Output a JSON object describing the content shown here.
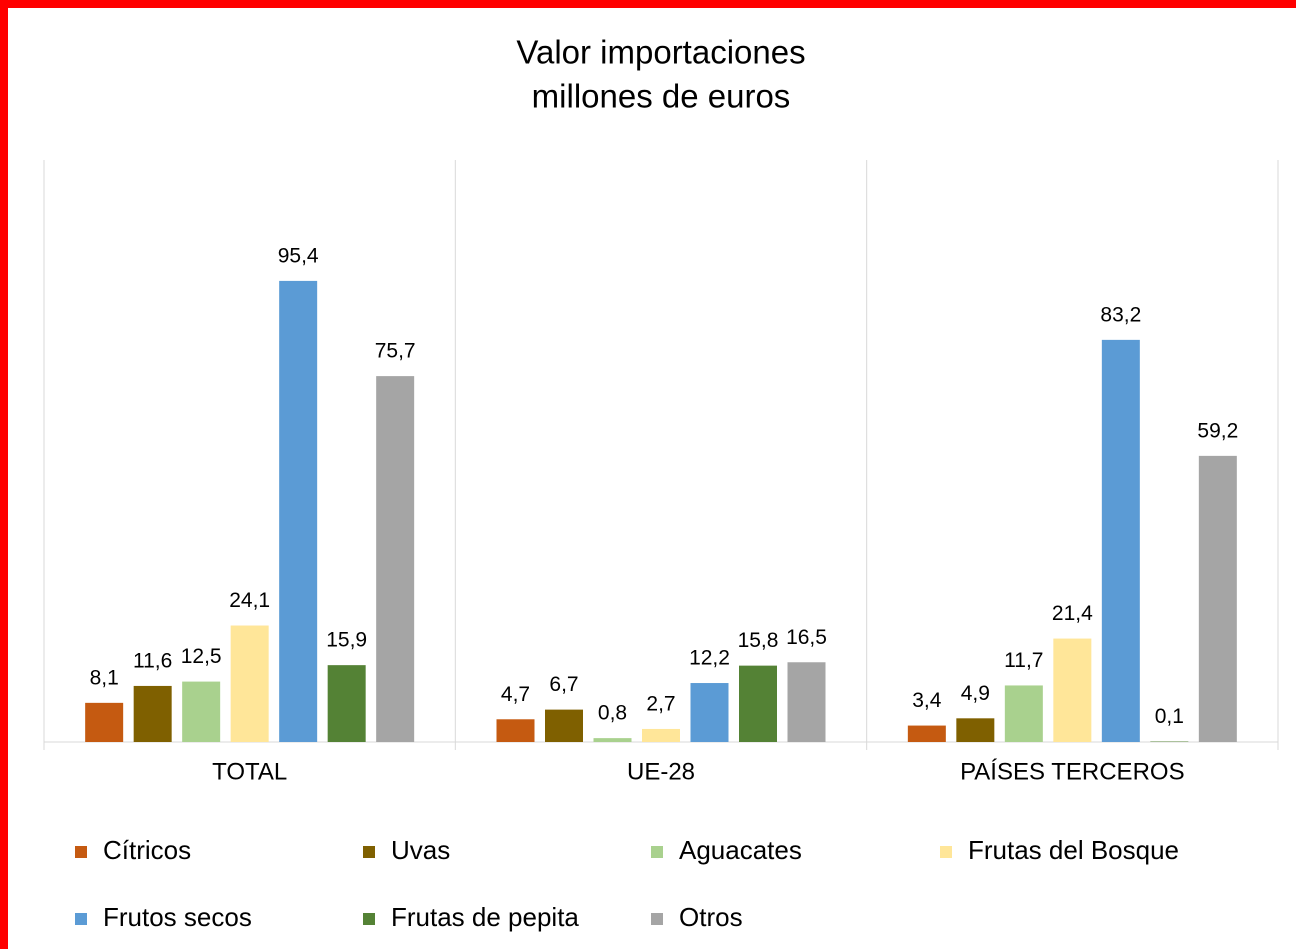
{
  "chart_data": {
    "type": "bar",
    "title": "Valor importaciones",
    "subtitle": "millones de euros",
    "categories": [
      "TOTAL",
      "UE-28",
      "PAÍSES TERCEROS"
    ],
    "ylim": [
      0,
      120
    ],
    "series": [
      {
        "name": "Cítricos",
        "color": "#c55a11",
        "values": [
          8.1,
          4.7,
          3.4
        ],
        "value_labels": [
          "8,1",
          "4,7",
          "3,4"
        ]
      },
      {
        "name": "Uvas",
        "color": "#7f6000",
        "values": [
          11.6,
          6.7,
          4.9
        ],
        "value_labels": [
          "11,6",
          "6,7",
          "4,9"
        ]
      },
      {
        "name": "Aguacates",
        "color": "#a9d18e",
        "values": [
          12.5,
          0.8,
          11.7
        ],
        "value_labels": [
          "12,5",
          "0,8",
          "11,7"
        ]
      },
      {
        "name": "Frutas del Bosque",
        "color": "#ffe699",
        "values": [
          24.1,
          2.7,
          21.4
        ],
        "value_labels": [
          "24,1",
          "2,7",
          "21,4"
        ]
      },
      {
        "name": "Frutos secos",
        "color": "#5b9bd5",
        "values": [
          95.4,
          12.2,
          83.2
        ],
        "value_labels": [
          "95,4",
          "12,2",
          "83,2"
        ]
      },
      {
        "name": "Frutas de pepita",
        "color": "#548235",
        "values": [
          15.9,
          15.8,
          0.1
        ],
        "value_labels": [
          "15,9",
          "15,8",
          "0,1"
        ]
      },
      {
        "name": "Otros",
        "color": "#a5a5a5",
        "values": [
          75.7,
          16.5,
          59.2
        ],
        "value_labels": [
          "75,7",
          "16,5",
          "59,2"
        ]
      }
    ],
    "legend": "bottom"
  }
}
